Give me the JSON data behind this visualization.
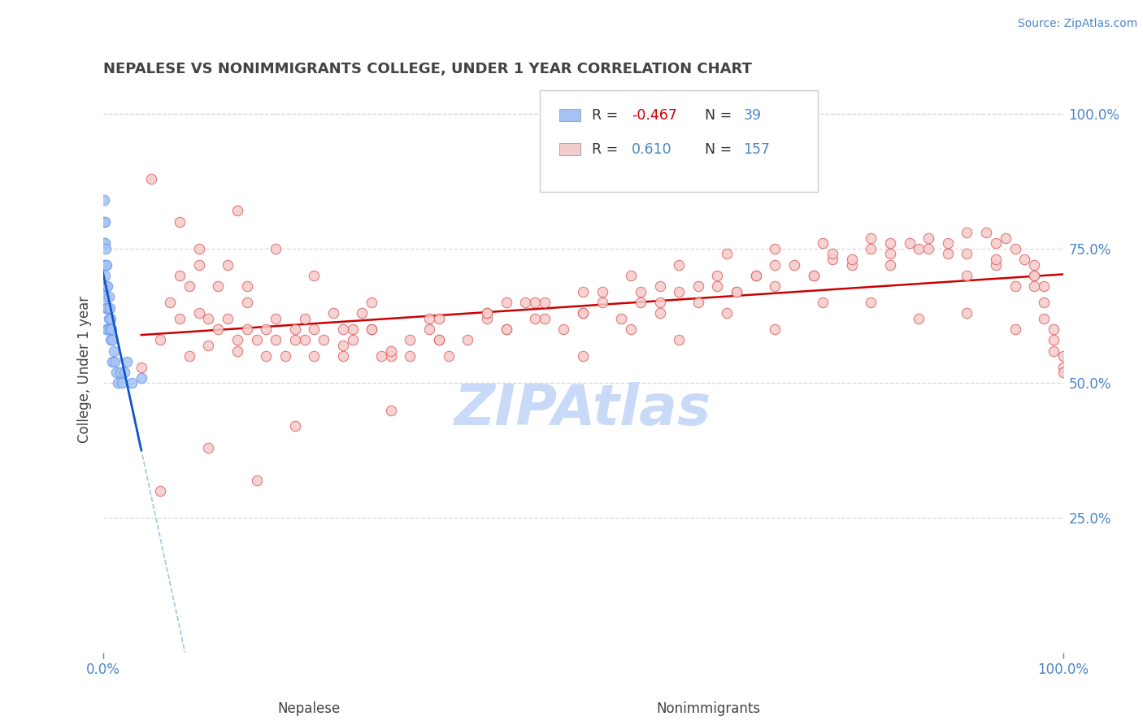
{
  "title": "NEPALESE VS NONIMMIGRANTS COLLEGE, UNDER 1 YEAR CORRELATION CHART",
  "source_text": "Source: ZipAtlas.com",
  "ylabel_left": "College, Under 1 year",
  "xlabel_nepalese": "Nepalese",
  "xlabel_nonimmigrants": "Nonimmigrants",
  "x_min": 0.0,
  "x_max": 1.0,
  "y_min": 0.0,
  "y_max": 1.05,
  "right_yticks": [
    0.25,
    0.5,
    0.75,
    1.0
  ],
  "right_yticklabels": [
    "25.0%",
    "50.0%",
    "75.0%",
    "100.0%"
  ],
  "blue_scatter_color": "#a4c2f4",
  "blue_edge_color": "#6d9eeb",
  "pink_scatter_color": "#f4cccc",
  "pink_edge_color": "#e06666",
  "line_blue_color": "#1155cc",
  "line_pink_color": "#cc0000",
  "line_blue_dashed_color": "#9fc5e8",
  "watermark_color": "#c9daf8",
  "title_color": "#434343",
  "source_color": "#4a86c8",
  "tick_color": "#4a86c8",
  "grid_color": "#d9d9d9",
  "legend_blue_fill": "#a4c2f4",
  "legend_pink_fill": "#f4cccc",
  "legend_r_color": "#cc0000",
  "legend_n_color": "#4a86c8",
  "nepalese_x": [
    0.001,
    0.001,
    0.001,
    0.001,
    0.002,
    0.002,
    0.002,
    0.002,
    0.002,
    0.003,
    0.003,
    0.003,
    0.003,
    0.004,
    0.004,
    0.004,
    0.004,
    0.005,
    0.005,
    0.005,
    0.006,
    0.006,
    0.007,
    0.007,
    0.008,
    0.008,
    0.009,
    0.01,
    0.01,
    0.011,
    0.012,
    0.014,
    0.016,
    0.018,
    0.02,
    0.022,
    0.025,
    0.03,
    0.04
  ],
  "nepalese_y": [
    0.84,
    0.8,
    0.76,
    0.72,
    0.8,
    0.76,
    0.72,
    0.7,
    0.66,
    0.75,
    0.72,
    0.68,
    0.64,
    0.72,
    0.68,
    0.64,
    0.6,
    0.68,
    0.64,
    0.6,
    0.66,
    0.62,
    0.64,
    0.6,
    0.62,
    0.58,
    0.6,
    0.58,
    0.54,
    0.56,
    0.54,
    0.52,
    0.5,
    0.52,
    0.5,
    0.52,
    0.54,
    0.5,
    0.51
  ],
  "nonimmigrants_x": [
    0.04,
    0.06,
    0.08,
    0.09,
    0.1,
    0.11,
    0.12,
    0.13,
    0.14,
    0.15,
    0.16,
    0.17,
    0.18,
    0.19,
    0.2,
    0.21,
    0.22,
    0.23,
    0.24,
    0.25,
    0.26,
    0.27,
    0.28,
    0.3,
    0.32,
    0.34,
    0.36,
    0.38,
    0.4,
    0.42,
    0.44,
    0.46,
    0.48,
    0.5,
    0.52,
    0.54,
    0.56,
    0.58,
    0.6,
    0.62,
    0.64,
    0.66,
    0.68,
    0.7,
    0.72,
    0.74,
    0.76,
    0.78,
    0.8,
    0.82,
    0.84,
    0.86,
    0.88,
    0.9,
    0.92,
    0.93,
    0.94,
    0.95,
    0.96,
    0.97,
    0.97,
    0.98,
    0.98,
    0.98,
    0.99,
    0.99,
    0.99,
    1.0,
    1.0,
    1.0,
    0.08,
    0.1,
    0.12,
    0.15,
    0.18,
    0.22,
    0.26,
    0.3,
    0.35,
    0.4,
    0.45,
    0.5,
    0.55,
    0.6,
    0.65,
    0.7,
    0.75,
    0.8,
    0.85,
    0.9,
    0.14,
    0.18,
    0.22,
    0.28,
    0.34,
    0.4,
    0.46,
    0.52,
    0.58,
    0.64,
    0.7,
    0.76,
    0.82,
    0.88,
    0.93,
    0.97,
    0.07,
    0.09,
    0.11,
    0.14,
    0.17,
    0.21,
    0.25,
    0.29,
    0.35,
    0.42,
    0.5,
    0.58,
    0.66,
    0.74,
    0.82,
    0.9,
    0.95,
    0.06,
    0.2,
    0.3,
    0.5,
    0.6,
    0.7,
    0.8,
    0.9,
    0.05,
    0.08,
    0.1,
    0.15,
    0.2,
    0.25,
    0.35,
    0.45,
    0.55,
    0.65,
    0.75,
    0.85,
    0.95,
    0.13,
    0.28,
    0.42,
    0.56,
    0.68,
    0.78,
    0.86,
    0.93,
    0.97,
    0.11,
    0.16,
    0.32,
    0.62
  ],
  "nonimmigrants_y": [
    0.53,
    0.58,
    0.62,
    0.55,
    0.63,
    0.57,
    0.6,
    0.62,
    0.56,
    0.65,
    0.58,
    0.6,
    0.62,
    0.55,
    0.6,
    0.62,
    0.55,
    0.58,
    0.63,
    0.57,
    0.6,
    0.63,
    0.6,
    0.55,
    0.58,
    0.6,
    0.55,
    0.58,
    0.62,
    0.6,
    0.65,
    0.62,
    0.6,
    0.63,
    0.65,
    0.62,
    0.65,
    0.63,
    0.67,
    0.65,
    0.68,
    0.67,
    0.7,
    0.68,
    0.72,
    0.7,
    0.73,
    0.72,
    0.75,
    0.74,
    0.76,
    0.77,
    0.76,
    0.78,
    0.78,
    0.76,
    0.77,
    0.75,
    0.73,
    0.72,
    0.7,
    0.68,
    0.65,
    0.62,
    0.6,
    0.58,
    0.56,
    0.55,
    0.53,
    0.52,
    0.7,
    0.72,
    0.68,
    0.6,
    0.58,
    0.6,
    0.58,
    0.56,
    0.62,
    0.63,
    0.65,
    0.67,
    0.7,
    0.72,
    0.74,
    0.75,
    0.76,
    0.77,
    0.75,
    0.74,
    0.82,
    0.75,
    0.7,
    0.65,
    0.62,
    0.63,
    0.65,
    0.67,
    0.68,
    0.7,
    0.72,
    0.74,
    0.76,
    0.74,
    0.72,
    0.68,
    0.65,
    0.68,
    0.62,
    0.58,
    0.55,
    0.58,
    0.6,
    0.55,
    0.58,
    0.6,
    0.63,
    0.65,
    0.67,
    0.7,
    0.72,
    0.7,
    0.68,
    0.3,
    0.42,
    0.45,
    0.55,
    0.58,
    0.6,
    0.65,
    0.63,
    0.88,
    0.8,
    0.75,
    0.68,
    0.58,
    0.55,
    0.58,
    0.62,
    0.6,
    0.63,
    0.65,
    0.62,
    0.6,
    0.72,
    0.6,
    0.65,
    0.67,
    0.7,
    0.73,
    0.75,
    0.73,
    0.7,
    0.38,
    0.32,
    0.55,
    0.68
  ]
}
